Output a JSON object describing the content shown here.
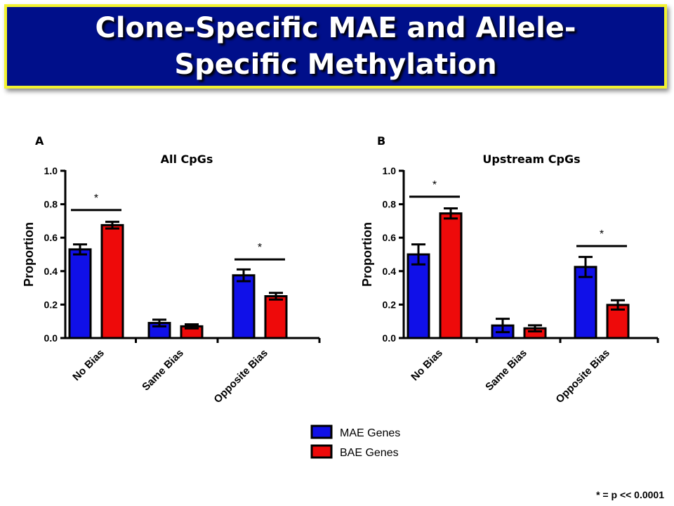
{
  "title": "Clone-Specific MAE and Allele-Specific Methylation",
  "footnote": "* = p << 0.0001",
  "colors": {
    "banner_bg": "#000f8a",
    "banner_border": "#f2f230",
    "mae": "#1010e8",
    "bae": "#ee0a0a"
  },
  "legend": [
    {
      "label": "MAE Genes",
      "color": "#1010e8"
    },
    {
      "label": "BAE Genes",
      "color": "#ee0a0a"
    }
  ],
  "chart_data": [
    {
      "type": "bar",
      "panel": "A",
      "title": "All CpGs",
      "ylabel": "Proportion",
      "ylim": [
        0,
        1.0
      ],
      "yticks": [
        "0.0",
        "0.2",
        "0.4",
        "0.6",
        "0.8",
        "1.0"
      ],
      "categories": [
        "No Bias",
        "Same Bias",
        "Opposite Bias"
      ],
      "series": [
        {
          "name": "MAE Genes",
          "values": [
            0.53,
            0.09,
            0.375
          ],
          "errors": [
            0.03,
            0.02,
            0.035
          ]
        },
        {
          "name": "BAE Genes",
          "values": [
            0.675,
            0.07,
            0.25
          ],
          "errors": [
            0.02,
            0.012,
            0.02
          ]
        }
      ],
      "significance": [
        {
          "category": 0,
          "label": "*",
          "y": 0.765
        },
        {
          "category": 2,
          "label": "*",
          "y": 0.47
        }
      ]
    },
    {
      "type": "bar",
      "panel": "B",
      "title": "Upstream CpGs",
      "ylabel": "Proportion",
      "ylim": [
        0,
        1.0
      ],
      "yticks": [
        "0.0",
        "0.2",
        "0.4",
        "0.6",
        "0.8",
        "1.0"
      ],
      "categories": [
        "No Bias",
        "Same Bias",
        "Opposite Bias"
      ],
      "series": [
        {
          "name": "MAE Genes",
          "values": [
            0.5,
            0.075,
            0.425
          ],
          "errors": [
            0.06,
            0.04,
            0.06
          ]
        },
        {
          "name": "BAE Genes",
          "values": [
            0.745,
            0.058,
            0.198
          ],
          "errors": [
            0.03,
            0.018,
            0.028
          ]
        }
      ],
      "significance": [
        {
          "category": 0,
          "label": "*",
          "y": 0.845
        },
        {
          "category": 2,
          "label": "*",
          "y": 0.55
        }
      ]
    }
  ]
}
